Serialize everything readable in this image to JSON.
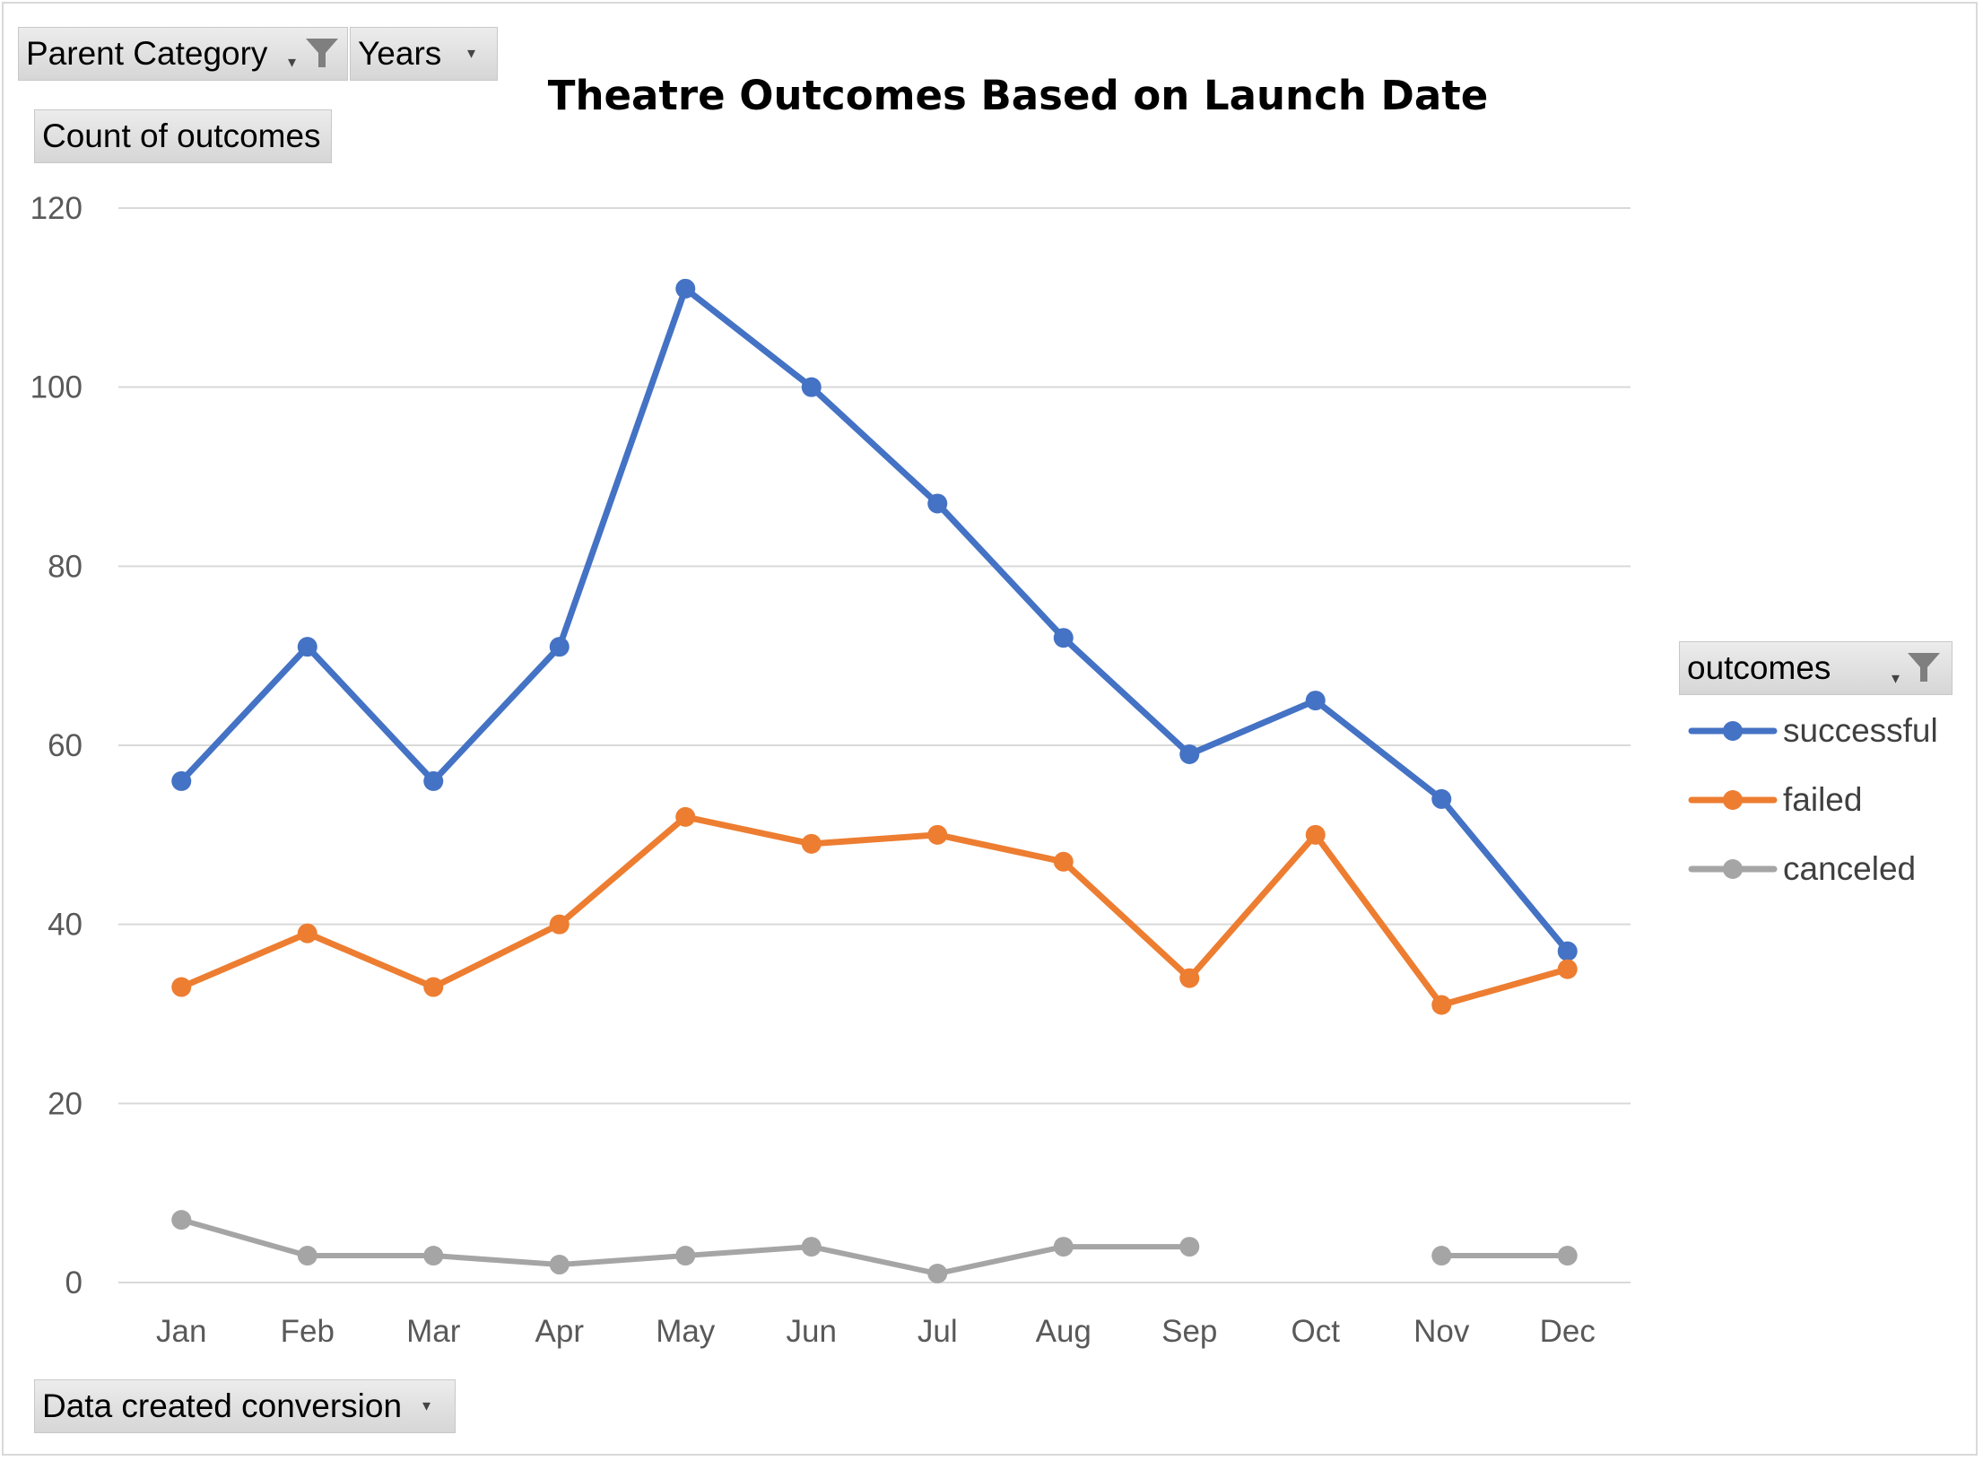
{
  "pivot_fields": {
    "parent_category": "Parent Category",
    "years": "Years",
    "count_of_outcomes": "Count of outcomes",
    "date_created_conversion": "Data created conversion",
    "outcomes": "outcomes"
  },
  "icons": {
    "filter": "funnel-filter-icon",
    "dropdown": "dropdown-arrow-icon"
  },
  "colors": {
    "successful": "#4472C4",
    "failed": "#ED7D31",
    "canceled": "#A5A5A5",
    "gridline": "#d9d9d9"
  },
  "chart_data": {
    "type": "line",
    "title": "Theatre Outcomes Based on Launch Date",
    "xlabel": "",
    "ylabel": "",
    "categories": [
      "Jan",
      "Feb",
      "Mar",
      "Apr",
      "May",
      "Jun",
      "Jul",
      "Aug",
      "Sep",
      "Oct",
      "Nov",
      "Dec"
    ],
    "ylim": [
      0,
      120
    ],
    "yticks": [
      0,
      20,
      40,
      60,
      80,
      100,
      120
    ],
    "grid": true,
    "legend": "right",
    "series": [
      {
        "name": "successful",
        "values": [
          56,
          71,
          56,
          71,
          111,
          100,
          87,
          72,
          59,
          65,
          54,
          37
        ]
      },
      {
        "name": "failed",
        "values": [
          33,
          39,
          33,
          40,
          52,
          49,
          50,
          47,
          34,
          50,
          31,
          35
        ]
      },
      {
        "name": "canceled",
        "values": [
          7,
          3,
          3,
          2,
          3,
          4,
          1,
          4,
          4,
          null,
          3,
          3
        ]
      }
    ]
  }
}
